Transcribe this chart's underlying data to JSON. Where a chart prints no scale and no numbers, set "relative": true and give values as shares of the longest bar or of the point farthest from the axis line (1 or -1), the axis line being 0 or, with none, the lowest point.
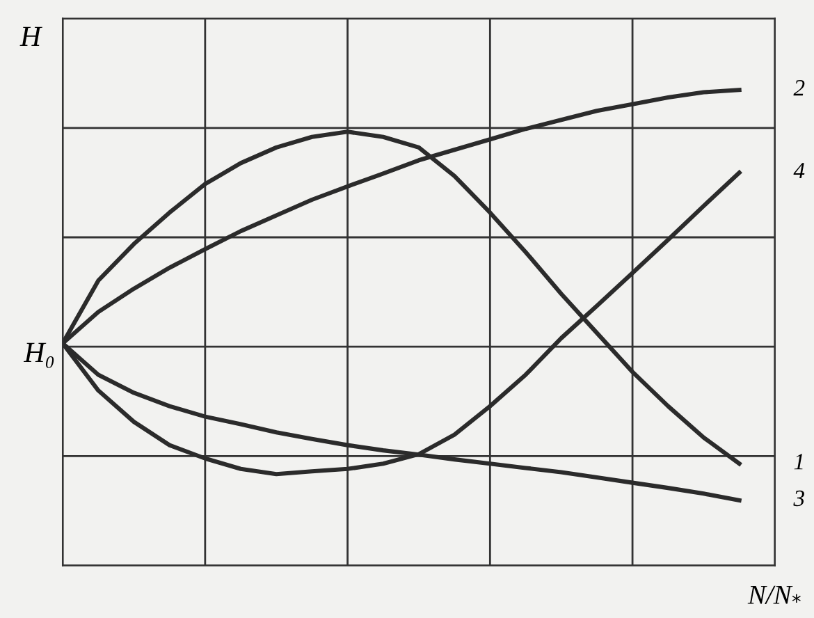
{
  "chart_data": {
    "type": "line",
    "relative": true,
    "xlabel": "N/N$_{*}$",
    "ylabel": "H",
    "annotations": [
      "H₀"
    ],
    "categories": [
      null,
      null,
      null,
      null,
      null,
      null,
      null,
      null,
      null,
      null,
      null,
      null,
      null,
      null,
      null,
      null,
      null,
      null,
      null,
      null
    ],
    "series": [
      {
        "name": "1",
        "color": "#2b2b2b",
        "values": [
          0.467,
          0.599,
          0.676,
          0.742,
          0.802,
          0.846,
          0.879,
          0.901,
          0.912,
          0.901,
          0.879,
          0.819,
          0.742,
          0.659,
          0.571,
          0.489,
          0.407,
          0.335,
          0.269,
          0.214
        ]
      },
      {
        "name": "2",
        "color": "#2b2b2b",
        "values": [
          0.467,
          0.533,
          0.582,
          0.626,
          0.665,
          0.703,
          0.736,
          0.769,
          0.797,
          0.824,
          0.852,
          0.874,
          0.896,
          0.918,
          0.937,
          0.956,
          0.97,
          0.984,
          0.995,
          1.0
        ]
      },
      {
        "name": "3",
        "color": "#2b2b2b",
        "values": [
          0.467,
          0.401,
          0.363,
          0.335,
          0.313,
          0.297,
          0.28,
          0.266,
          0.253,
          0.242,
          0.233,
          0.223,
          0.214,
          0.205,
          0.196,
          0.185,
          0.174,
          0.163,
          0.151,
          0.137
        ]
      },
      {
        "name": "4",
        "color": "#2b2b2b",
        "values": [
          0.467,
          0.368,
          0.302,
          0.253,
          0.225,
          0.203,
          0.192,
          0.198,
          0.203,
          0.214,
          0.234,
          0.275,
          0.335,
          0.401,
          0.478,
          0.546,
          0.615,
          0.685,
          0.756,
          0.826
        ]
      }
    ],
    "grid": true,
    "legend": false,
    "line_style": "solid",
    "marker": "none"
  }
}
